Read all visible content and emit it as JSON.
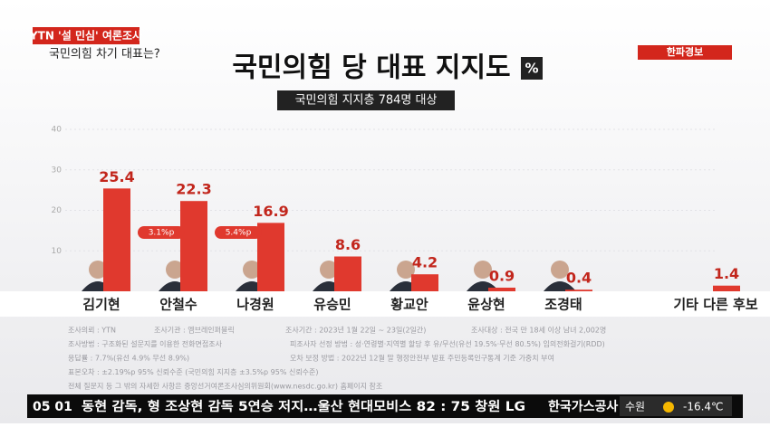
{
  "header": {
    "badge": "YTN '설 민심' 여론조사",
    "question": "국민의힘 차기 대표는?",
    "alert": "한파경보"
  },
  "chart_data": {
    "type": "bar",
    "title": "국민의힘 당 대표 지지도",
    "unit": "%",
    "subtitle": "국민의힘 지지층 784명 대상",
    "categories": [
      "김기현",
      "안철수",
      "나경원",
      "유승민",
      "황교안",
      "윤상현",
      "조경태",
      "기타 다른 후보"
    ],
    "values": [
      25.4,
      22.3,
      16.9,
      8.6,
      4.2,
      0.9,
      0.4,
      1.4
    ],
    "color": "#e0392e",
    "ylim": [
      0,
      40
    ],
    "yticks": [
      10,
      20,
      30,
      40
    ],
    "grid": true,
    "annotations": [
      "3.1%p",
      "5.4%p"
    ]
  },
  "footnotes": [
    [
      "조사의뢰 : YTN",
      "조사기관 : 엠브레인퍼블릭",
      "조사기간 : 2023년 1월 22일 ~ 23일(2일간)",
      "조사대상 : 전국 만 18세 이상 남녀 2,002명"
    ],
    [
      "조사방법 : 구조화된 설문지를 이용한 전화면접조사",
      "피조사자 선정 방법 : 성·연령별·지역별 할당 후 유/무선(유선 19.5%·무선 80.5%) 임의전화걸기(RDD)"
    ],
    [
      "응답률 : 7.7%(유선 4.9% 무선 8.9%)",
      "오차 보정 방법 : 2022년 12월 말 행정안전부 발표 주민등록인구통계 기준 가중치 부여"
    ],
    [
      "표본오차 : ±2.19%p 95% 신뢰수준 (국민의힘 지지층 ±3.5%p 95% 신뢰수준)"
    ],
    [
      "전체 질문지 등 그 밖의 자세한 사항은 중앙선거여론조사심의위원회(www.nesdc.go.kr) 홈페이지 참조"
    ]
  ],
  "ticker": {
    "time": "05 01",
    "text": "동현 감독, 형 조상현 감독 5연승 저지…울산 현대모비스 82 : 75 창원 LG",
    "next": "한국가스공사",
    "city": "수원",
    "temp": "-16.4℃"
  }
}
